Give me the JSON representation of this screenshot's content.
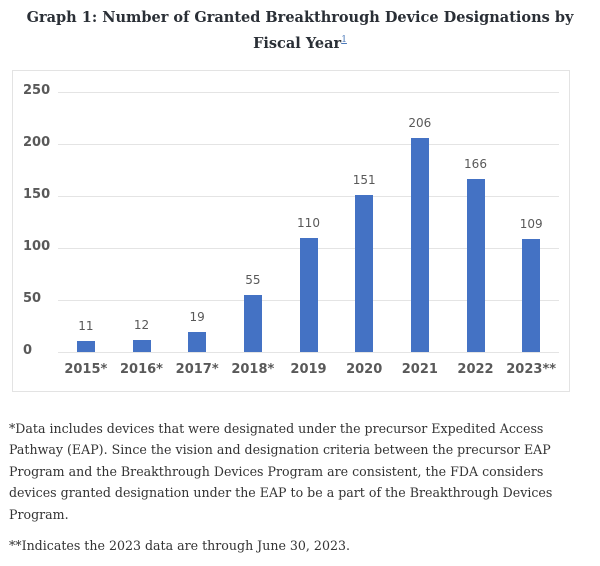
{
  "header": {
    "title": "Graph 1: Number of Granted Breakthrough Device Designations by Fiscal Year",
    "footnote_ref": "1"
  },
  "chart_data": {
    "type": "bar",
    "title": "Graph 1: Number of Granted Breakthrough Device Designations by Fiscal Year",
    "xlabel": "",
    "ylabel": "",
    "categories": [
      "2015*",
      "2016*",
      "2017*",
      "2018*",
      "2019",
      "2020",
      "2021",
      "2022",
      "2023**"
    ],
    "values": [
      11,
      12,
      19,
      55,
      110,
      151,
      206,
      166,
      109
    ],
    "ylim": [
      0,
      250
    ],
    "yticks": [
      0,
      50,
      100,
      150,
      200,
      250
    ],
    "grid": true,
    "legend": null,
    "bar_color": "#4472c4",
    "data_labels": true
  },
  "notes": {
    "note1": "*Data includes devices that were designated under the precursor Expedited Access Pathway (EAP). Since the vision and designation criteria between the precursor EAP Program and the Breakthrough Devices Program are consistent, the FDA considers devices granted designation under the EAP to be a part of the Breakthrough Devices Program.",
    "note2": "**Indicates the 2023 data are through June 30, 2023."
  }
}
